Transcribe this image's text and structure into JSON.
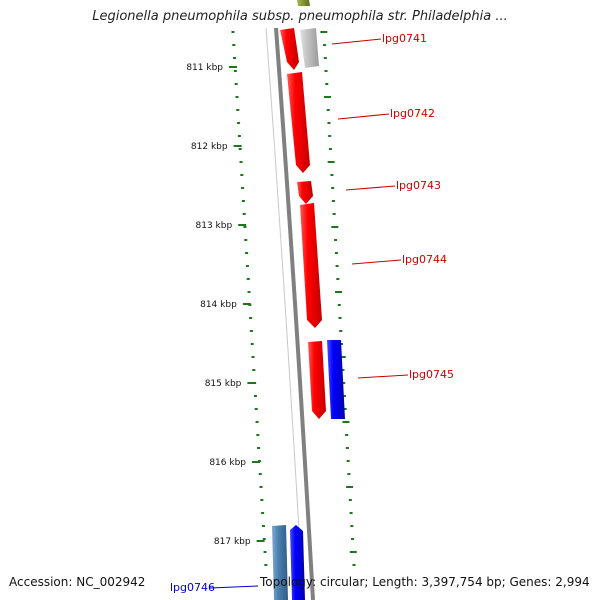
{
  "title": "Legionella pneumophila subsp. pneumophila str. Philadelphia ...",
  "footer": {
    "accession": "Accession: NC_002942",
    "topology": "Topology: circular; Length: 3,397,754 bp; Genes: 2,994"
  },
  "scale_ticks": [
    {
      "label": "811 kbp",
      "kbp": 811
    },
    {
      "label": "812 kbp",
      "kbp": 812
    },
    {
      "label": "813 kbp",
      "kbp": 813
    },
    {
      "label": "814 kbp",
      "kbp": 814
    },
    {
      "label": "815 kbp",
      "kbp": 815
    },
    {
      "label": "816 kbp",
      "kbp": 816
    },
    {
      "label": "817 kbp",
      "kbp": 817
    }
  ],
  "gene_labels": [
    {
      "label": "lpg0741",
      "color": "#cc0000"
    },
    {
      "label": "lpg0742",
      "color": "#cc0000"
    },
    {
      "label": "lpg0743",
      "color": "#cc0000"
    },
    {
      "label": "lpg0744",
      "color": "#cc0000"
    },
    {
      "label": "lpg0745",
      "color": "#cc0000"
    },
    {
      "label": "lpg0746",
      "color": "#0000cc"
    }
  ],
  "colors": {
    "forward_cds": "#ff0000",
    "reverse_cds": "#0000ff",
    "light_blue_cds": "#4a7fb0",
    "grey_cds": "#bdbdbd",
    "olive_cds": "#7a8a2a",
    "backbone": "#808080",
    "gc_skew": "#1a7a1a"
  }
}
